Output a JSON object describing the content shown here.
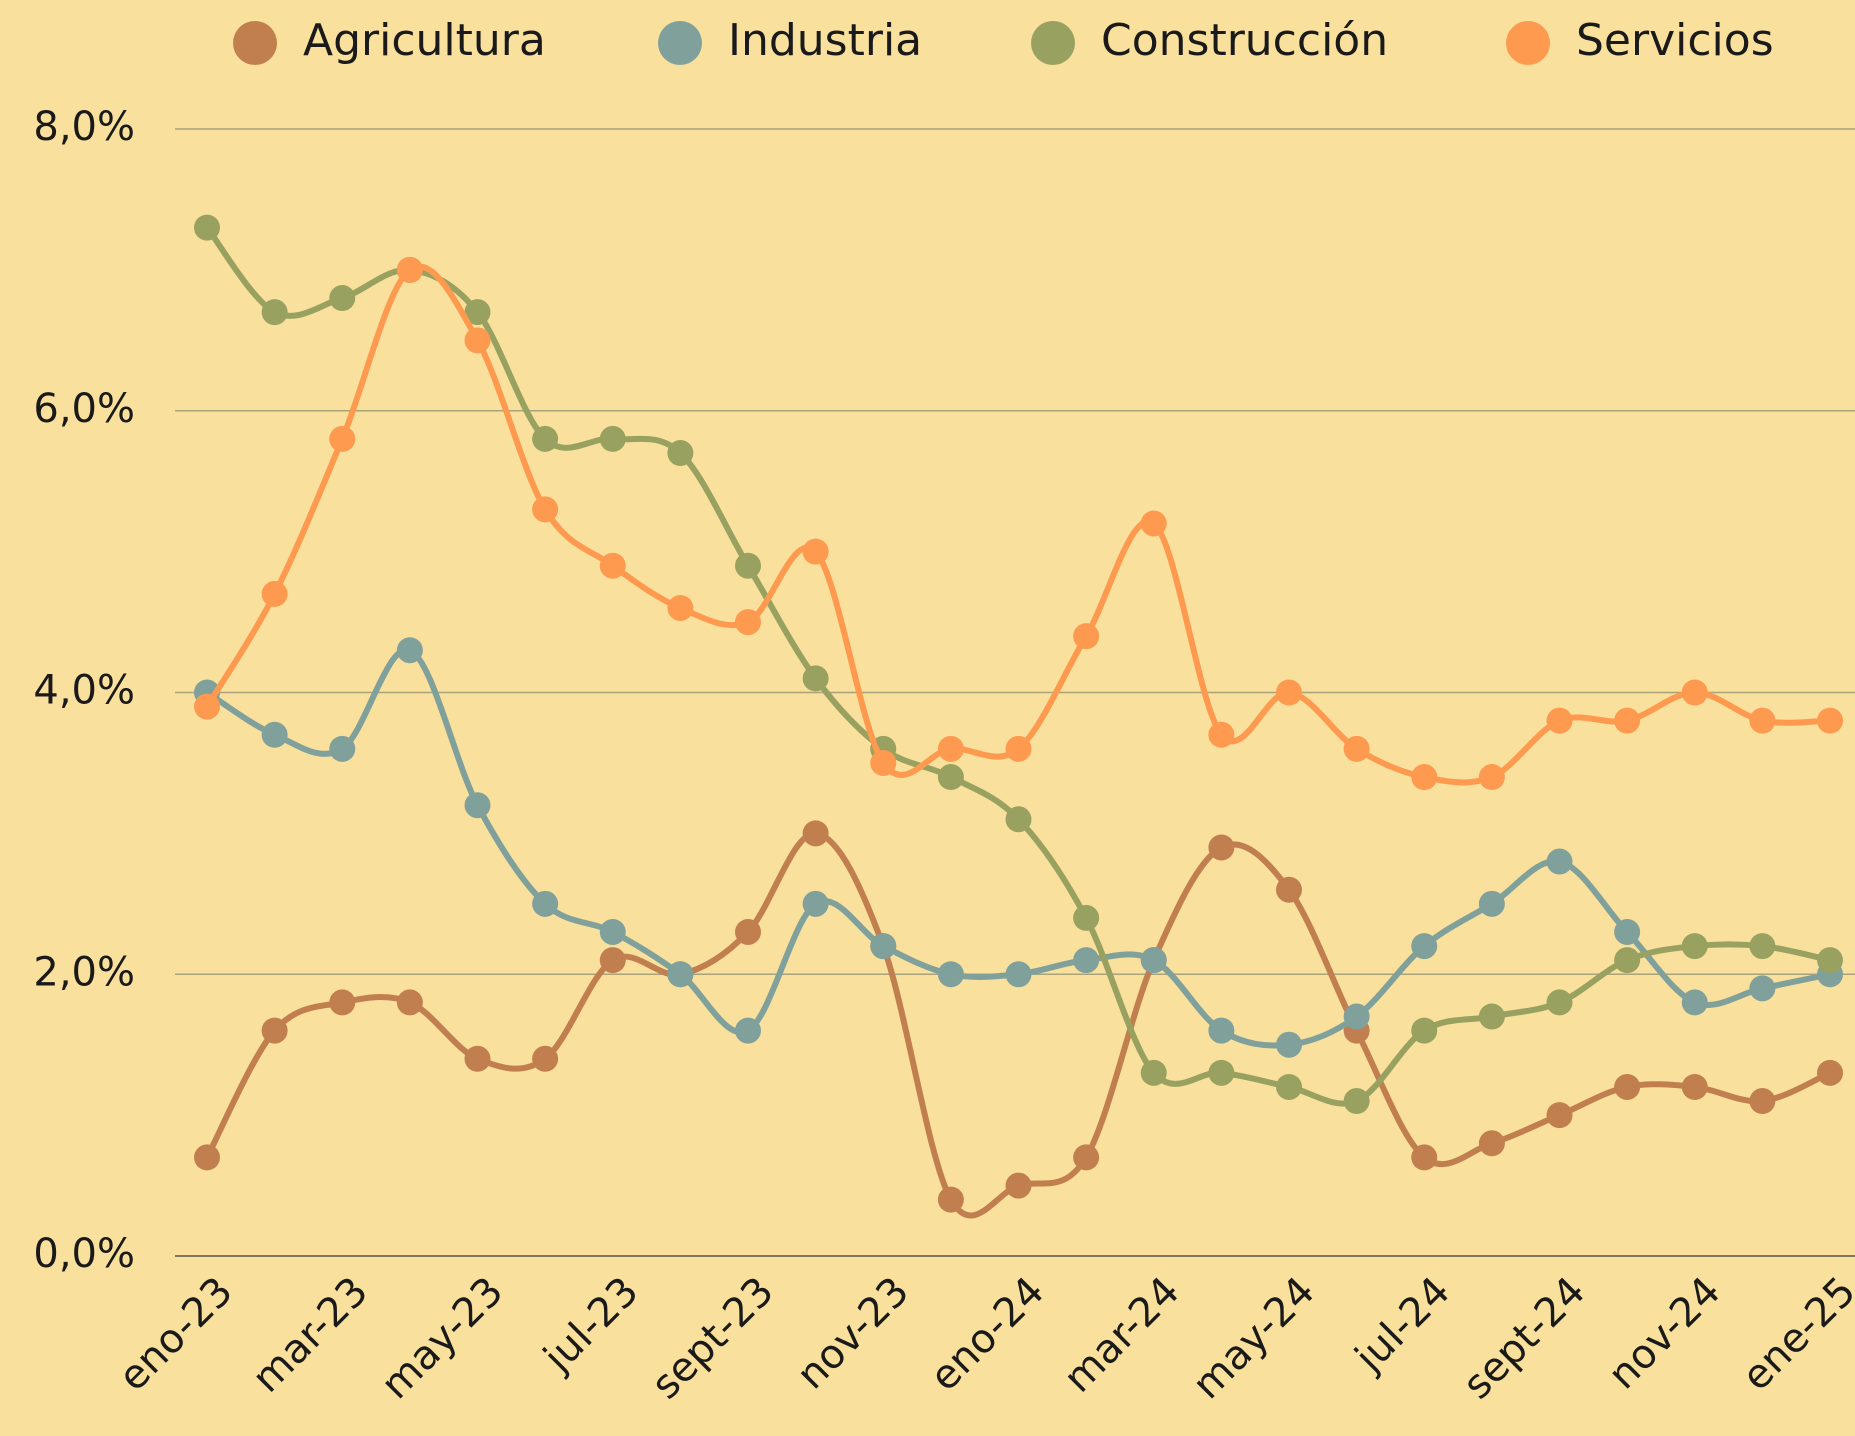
{
  "chart_data": {
    "type": "line",
    "categories": [
      "eno-23",
      null,
      "mar-23",
      null,
      "may-23",
      null,
      "jul-23",
      null,
      "sept-23",
      null,
      "nov-23",
      null,
      "eno-24",
      null,
      "mar-24",
      null,
      "may-24",
      null,
      "jul-24",
      null,
      "sept-24",
      null,
      "nov-24",
      null,
      "ene-25"
    ],
    "series": [
      {
        "name": "Agricultura",
        "color": "#c17f50",
        "values": [
          0.7,
          1.6,
          1.8,
          1.8,
          1.4,
          1.4,
          2.1,
          2.0,
          2.3,
          3.0,
          2.2,
          0.4,
          0.5,
          0.7,
          2.1,
          2.9,
          2.6,
          1.6,
          0.7,
          0.8,
          1.0,
          1.2,
          1.2,
          1.1,
          1.3
        ]
      },
      {
        "name": "Industria",
        "color": "#80a09c",
        "values": [
          4.0,
          3.7,
          3.6,
          4.3,
          3.2,
          2.5,
          2.3,
          2.0,
          1.6,
          2.5,
          2.2,
          2.0,
          2.0,
          2.1,
          2.1,
          1.6,
          1.5,
          1.7,
          2.2,
          2.5,
          2.8,
          2.3,
          1.8,
          1.9,
          2.0
        ]
      },
      {
        "name": "Construcción",
        "color": "#99a160",
        "values": [
          7.3,
          6.7,
          6.8,
          7.0,
          6.7,
          5.8,
          5.8,
          5.7,
          4.9,
          4.1,
          3.6,
          3.4,
          3.1,
          2.4,
          1.3,
          1.3,
          1.2,
          1.1,
          1.6,
          1.7,
          1.8,
          2.1,
          2.2,
          2.2,
          2.1
        ]
      },
      {
        "name": "Servicios",
        "color": "#fd9a50",
        "values": [
          3.9,
          4.7,
          5.8,
          7.0,
          6.5,
          5.3,
          4.9,
          4.6,
          4.5,
          5.0,
          3.5,
          3.6,
          3.6,
          4.4,
          5.2,
          3.7,
          4.0,
          3.6,
          3.4,
          3.4,
          3.8,
          3.8,
          4.0,
          3.8,
          3.8
        ]
      }
    ],
    "ylim": [
      0,
      8
    ],
    "yticks": [
      {
        "value": 0,
        "label": "0,0%"
      },
      {
        "value": 2,
        "label": "2,0%"
      },
      {
        "value": 4,
        "label": "4,0%"
      },
      {
        "value": 6,
        "label": "6,0%"
      },
      {
        "value": 8,
        "label": "8,0%"
      }
    ],
    "grid": true,
    "legend": "top"
  }
}
